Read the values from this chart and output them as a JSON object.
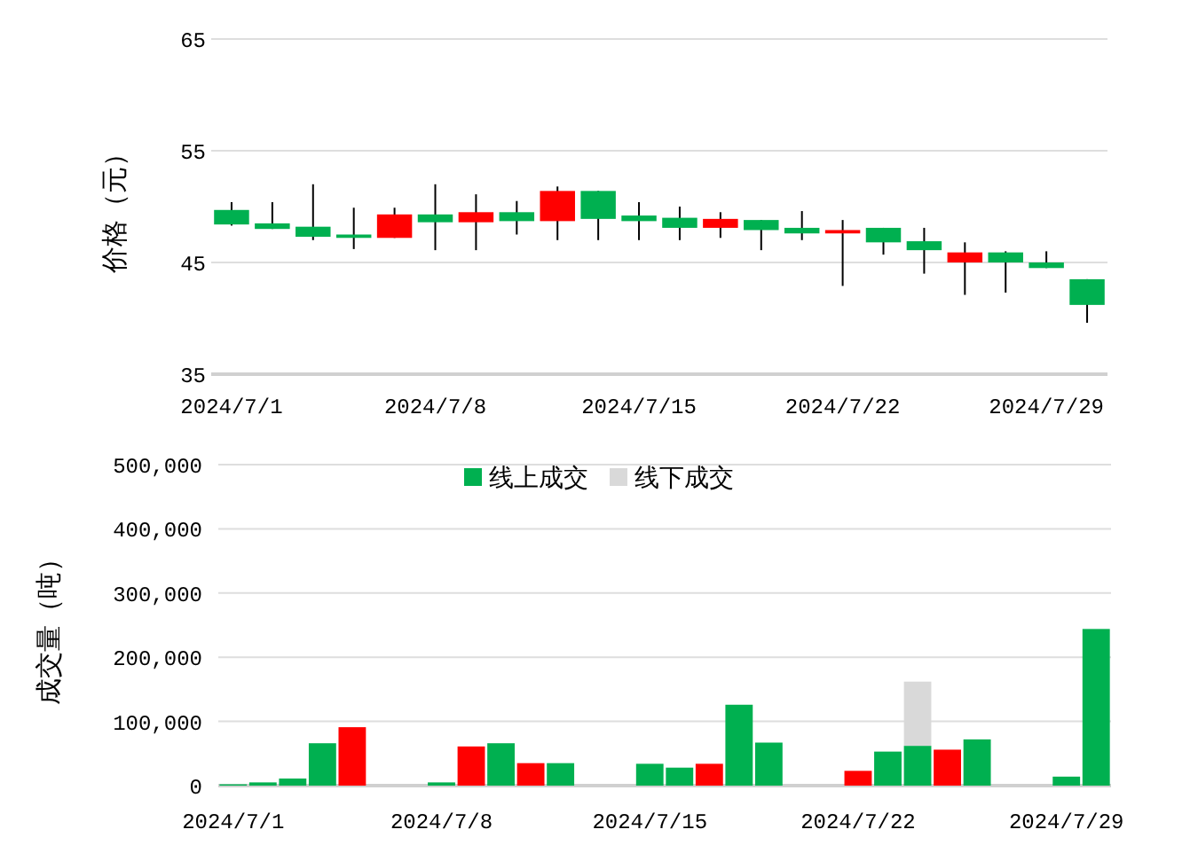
{
  "chart_data": [
    {
      "type": "candlestick",
      "ylabel": "价格（元）",
      "categories": [
        "2024/7/1",
        null,
        null,
        null,
        null,
        "2024/7/8",
        null,
        null,
        null,
        null,
        "2024/7/15",
        null,
        null,
        null,
        null,
        "2024/7/22",
        null,
        null,
        null,
        null,
        "2024/7/29",
        null
      ],
      "ohlc": [
        [
          49.7,
          50.4,
          48.3,
          48.4
        ],
        [
          48.5,
          50.4,
          48.0,
          48.0
        ],
        [
          48.2,
          52.0,
          47.0,
          47.3
        ],
        [
          47.5,
          49.9,
          46.2,
          47.2
        ],
        [
          47.2,
          49.9,
          47.2,
          49.3
        ],
        [
          49.3,
          52.0,
          46.1,
          48.6
        ],
        [
          48.6,
          51.1,
          46.1,
          49.5
        ],
        [
          49.5,
          50.5,
          47.5,
          48.7
        ],
        [
          48.7,
          51.8,
          47.0,
          51.4
        ],
        [
          51.4,
          51.4,
          47.0,
          48.9
        ],
        [
          49.2,
          50.4,
          47.0,
          48.7
        ],
        [
          49.0,
          50.0,
          47.0,
          48.1
        ],
        [
          48.1,
          49.5,
          47.2,
          48.9
        ],
        [
          48.8,
          48.8,
          46.1,
          47.9
        ],
        [
          48.1,
          49.6,
          47.0,
          47.6
        ],
        [
          47.6,
          48.8,
          42.9,
          47.9
        ],
        [
          48.1,
          48.1,
          45.7,
          46.8
        ],
        [
          46.9,
          48.1,
          44.0,
          46.1
        ],
        [
          45.0,
          46.8,
          42.1,
          45.9
        ],
        [
          45.9,
          46.0,
          42.3,
          45.0
        ],
        [
          45.0,
          46.0,
          44.5,
          44.5
        ],
        [
          43.5,
          43.5,
          39.6,
          41.2
        ]
      ],
      "colors": [
        "#00b050",
        "#00b050",
        "#00b050",
        "#00b050",
        "#ff0000",
        "#00b050",
        "#ff0000",
        "#00b050",
        "#ff0000",
        "#00b050",
        "#00b050",
        "#00b050",
        "#ff0000",
        "#00b050",
        "#00b050",
        "#ff0000",
        "#00b050",
        "#00b050",
        "#ff0000",
        "#00b050",
        "#00b050",
        "#00b050"
      ],
      "ylim": [
        35,
        65
      ],
      "yticks": [
        35,
        45,
        55,
        65
      ],
      "grid": "y"
    },
    {
      "type": "bar",
      "ylabel": "成交量（吨）",
      "stacked": true,
      "legend": "top",
      "grid": "y",
      "categories": [
        "2024/7/1",
        null,
        null,
        null,
        null,
        null,
        null,
        "2024/7/8",
        null,
        null,
        null,
        null,
        null,
        null,
        "2024/7/15",
        null,
        null,
        null,
        null,
        null,
        null,
        "2024/7/22",
        null,
        null,
        null,
        null,
        null,
        null,
        "2024/7/29",
        null
      ],
      "series": [
        {
          "name": "线上成交",
          "color": "#00b050",
          "colors": [
            "#00b050",
            "#00b050",
            "#00b050",
            "#00b050",
            "#ff0000",
            null,
            null,
            "#00b050",
            "#ff0000",
            "#00b050",
            "#ff0000",
            "#00b050",
            null,
            null,
            "#00b050",
            "#00b050",
            "#ff0000",
            "#00b050",
            "#00b050",
            null,
            null,
            "#ff0000",
            "#00b050",
            "#00b050",
            "#ff0000",
            "#00b050",
            null,
            null,
            "#00b050",
            "#00b050"
          ],
          "values": [
            2000,
            5000,
            11000,
            66000,
            91000,
            null,
            null,
            5000,
            61000,
            66000,
            35000,
            35000,
            null,
            null,
            34000,
            28000,
            34000,
            126000,
            67000,
            null,
            null,
            23000,
            53000,
            62000,
            56000,
            72000,
            null,
            null,
            14000,
            244000
          ]
        },
        {
          "name": "线下成交",
          "color": "#d9d9d9",
          "values": [
            null,
            null,
            null,
            null,
            null,
            null,
            null,
            null,
            null,
            null,
            null,
            null,
            null,
            null,
            null,
            null,
            null,
            null,
            null,
            null,
            null,
            null,
            null,
            100000,
            null,
            null,
            null,
            null,
            null,
            null
          ]
        }
      ],
      "ylim": [
        0,
        500000
      ],
      "yticks": [
        {
          "value": 0,
          "label": "0"
        },
        {
          "value": 100000,
          "label": "100,000"
        },
        {
          "value": 200000,
          "label": "200,000"
        },
        {
          "value": 300000,
          "label": "300,000"
        },
        {
          "value": 400000,
          "label": "400,000"
        },
        {
          "value": 500000,
          "label": "500,000"
        }
      ]
    }
  ]
}
